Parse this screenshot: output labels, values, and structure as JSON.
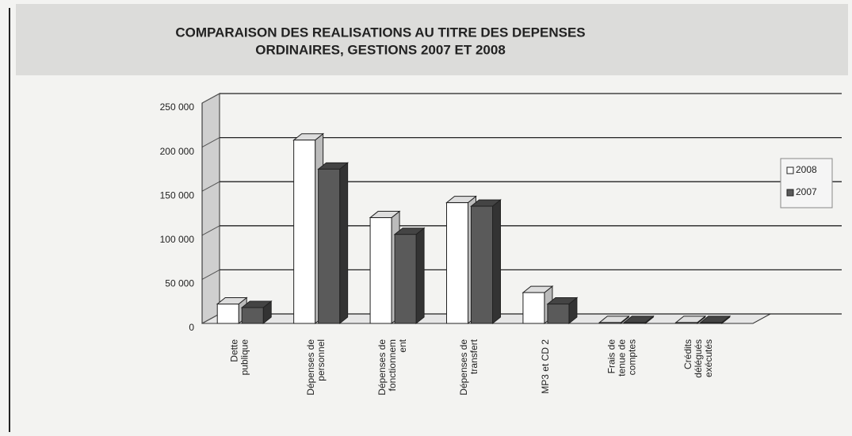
{
  "chart_data": {
    "type": "bar",
    "title": [
      "COMPARAISON DES REALISATIONS AU TITRE DES DEPENSES",
      "ORDINAIRES, GESTIONS 2007 ET 2008"
    ],
    "categories": [
      "Dette publique",
      "Dépenses de personnel",
      "Dépenses de fonctionnem ent",
      "Dépenses de transfert",
      "MP3 et CD 2",
      "Frais de tenue de comptes",
      "Crédits délégués exécutés"
    ],
    "series": [
      {
        "name": "2008",
        "color": "#ffffff",
        "values": [
          22000,
          208000,
          120000,
          137000,
          35000,
          1000,
          1000
        ]
      },
      {
        "name": "2007",
        "color": "#5a5a5a",
        "values": [
          18000,
          175000,
          101000,
          133000,
          22000,
          1000,
          1000
        ]
      }
    ],
    "ylim": [
      0,
      250000
    ],
    "yticks": [
      0,
      {
        "value": 50000,
        "label": "50 000"
      },
      {
        "value": 100000,
        "label": "100 000"
      },
      {
        "value": 150000,
        "label": "150 000"
      },
      {
        "value": 200000,
        "label": "200 000"
      },
      {
        "value": 250000,
        "label": "250 000"
      }
    ],
    "grid": true,
    "legend": "right"
  }
}
